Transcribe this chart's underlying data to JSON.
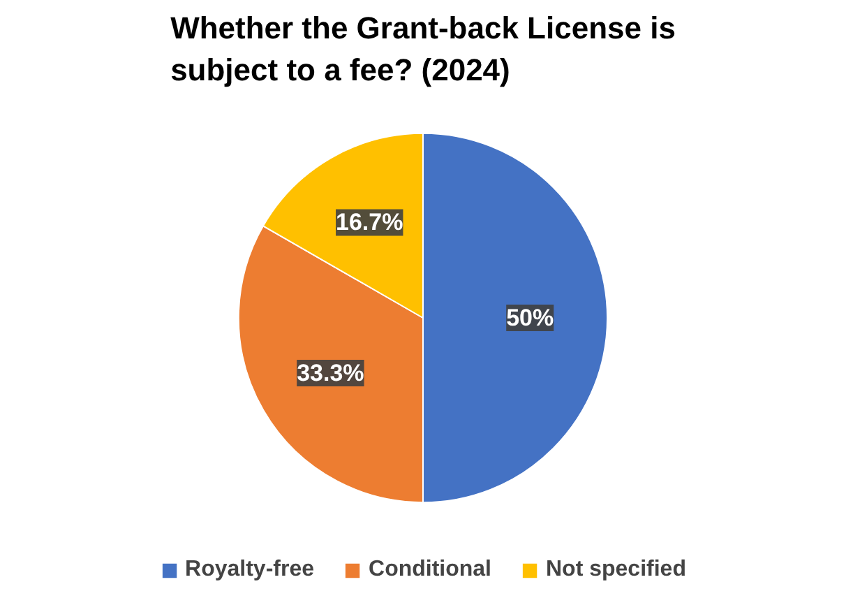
{
  "chart_data": {
    "type": "pie",
    "title": "Whether the Grant-back License is subject to a fee? (2024)",
    "categories": [
      "Royalty-free",
      "Conditional",
      "Not specified"
    ],
    "values": [
      50,
      33.3,
      16.7
    ],
    "colors": [
      "#4472c4",
      "#ed7d31",
      "#ffc000"
    ],
    "value_labels": [
      "50%",
      "33.3%",
      "16.7%"
    ],
    "legend": "bottom"
  }
}
